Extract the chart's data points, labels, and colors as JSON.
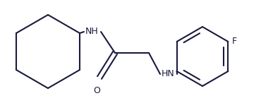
{
  "background_color": "#ffffff",
  "line_color": "#1a1a3e",
  "text_color": "#1a1a3e",
  "line_width": 1.5,
  "font_size": 9,
  "figsize": [
    3.7,
    1.46
  ],
  "dpi": 100,
  "xlim": [
    0,
    370
  ],
  "ylim": [
    0,
    146
  ]
}
